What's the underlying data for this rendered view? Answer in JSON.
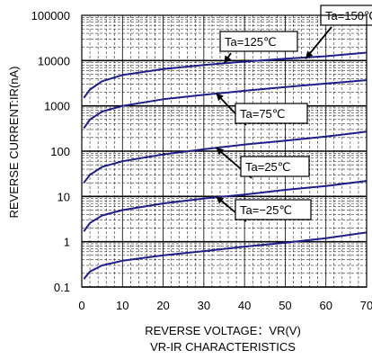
{
  "chart_data": {
    "type": "line",
    "xlabel": "REVERSE VOLTAGE：VR(V)",
    "ylabel": "REVERSE CURRENT:IR(nA)",
    "caption": "VR-IR CHARACTERISTICS",
    "xlim": [
      0,
      70
    ],
    "ylim": [
      0.1,
      100000
    ],
    "yscale": "log",
    "grid": true,
    "x_ticks": [
      "0",
      "10",
      "20",
      "30",
      "40",
      "50",
      "60",
      "70"
    ],
    "y_ticks": [
      "0.1",
      "1",
      "10",
      "100",
      "1000",
      "10000",
      "100000"
    ],
    "series": [
      {
        "name": "Ta=150℃",
        "x": [
          0.5,
          2,
          5,
          10,
          20,
          30,
          40,
          50,
          60,
          70
        ],
        "y": [
          1500,
          2300,
          3500,
          4800,
          6500,
          8000,
          9500,
          11000,
          12500,
          15000
        ]
      },
      {
        "name": "Ta=125℃",
        "x": [
          0.5,
          2,
          5,
          10,
          20,
          30,
          40,
          50,
          60,
          70
        ],
        "y": [
          320,
          500,
          750,
          1000,
          1400,
          1750,
          2150,
          2600,
          3100,
          3700
        ]
      },
      {
        "name": "Ta=75℃",
        "x": [
          0.5,
          2,
          5,
          10,
          20,
          30,
          40,
          50,
          60,
          70
        ],
        "y": [
          20,
          30,
          45,
          60,
          85,
          110,
          140,
          170,
          210,
          270
        ]
      },
      {
        "name": "Ta=25℃",
        "x": [
          0.5,
          2,
          5,
          10,
          20,
          30,
          40,
          50,
          60,
          70
        ],
        "y": [
          1.7,
          2.6,
          3.8,
          5,
          7,
          9,
          11,
          14,
          17,
          22
        ]
      },
      {
        "name": "Ta=−25℃",
        "x": [
          0.5,
          2,
          5,
          10,
          20,
          30,
          40,
          50,
          60,
          70
        ],
        "y": [
          0.15,
          0.22,
          0.3,
          0.38,
          0.5,
          0.62,
          0.78,
          0.95,
          1.2,
          1.6
        ]
      }
    ],
    "line_color": "#1f1f8a"
  }
}
